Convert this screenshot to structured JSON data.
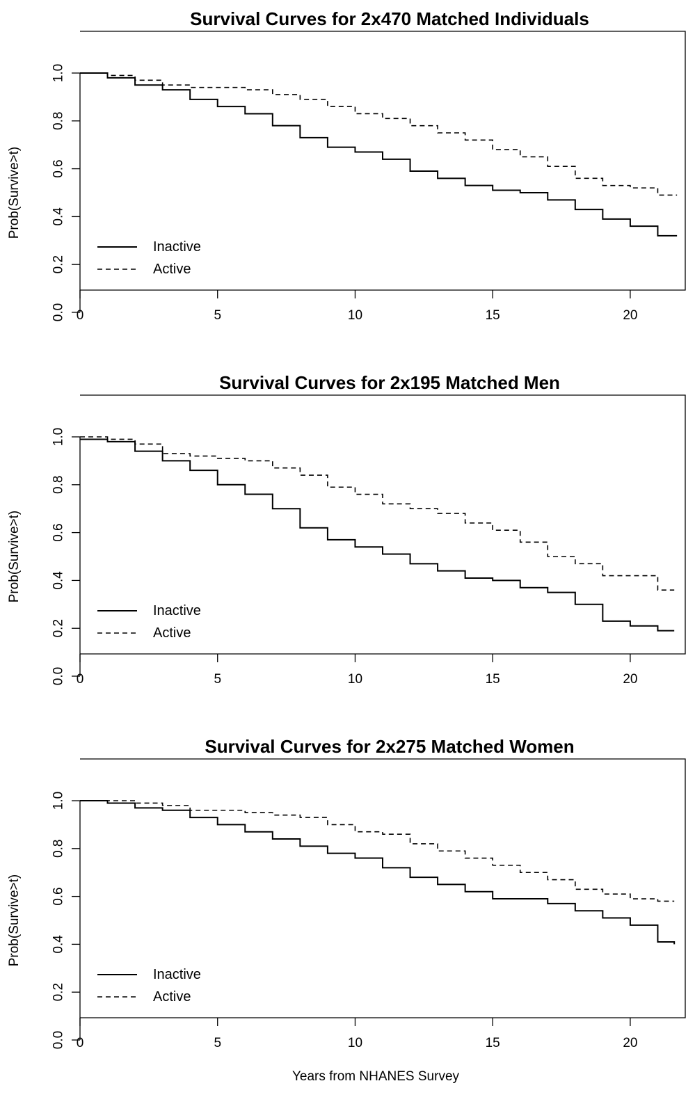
{
  "chart_data": [
    {
      "type": "line",
      "title": "Survival Curves for 2x470 Matched Individuals",
      "ylabel": "Prob(Survive>t)",
      "xlabel": "",
      "xlim": [
        0,
        22
      ],
      "ylim": [
        0,
        1
      ],
      "x_ticks": [
        0,
        5,
        10,
        15,
        20
      ],
      "y_ticks": [
        "0.0",
        "0.2",
        "0.4",
        "0.6",
        "0.8",
        "1.0"
      ],
      "legend": "bottom-left",
      "series": [
        {
          "name": "Inactive",
          "style": "solid",
          "x": [
            0,
            1,
            2,
            3,
            4,
            5,
            6,
            7,
            8,
            9,
            10,
            11,
            12,
            13,
            14,
            15,
            16,
            17,
            18,
            19,
            20,
            21,
            21.7
          ],
          "y": [
            1.0,
            0.98,
            0.95,
            0.93,
            0.89,
            0.86,
            0.83,
            0.78,
            0.73,
            0.69,
            0.67,
            0.64,
            0.59,
            0.56,
            0.53,
            0.51,
            0.5,
            0.47,
            0.43,
            0.39,
            0.36,
            0.32,
            0.32
          ]
        },
        {
          "name": "Active",
          "style": "dashed",
          "x": [
            0,
            1,
            2,
            3,
            4,
            5,
            6,
            7,
            8,
            9,
            10,
            11,
            12,
            13,
            14,
            15,
            16,
            17,
            18,
            19,
            20,
            21,
            21.7
          ],
          "y": [
            1.0,
            0.99,
            0.97,
            0.95,
            0.94,
            0.94,
            0.93,
            0.91,
            0.89,
            0.86,
            0.83,
            0.81,
            0.78,
            0.75,
            0.72,
            0.68,
            0.65,
            0.61,
            0.56,
            0.53,
            0.52,
            0.49,
            0.49
          ]
        }
      ]
    },
    {
      "type": "line",
      "title": "Survival Curves for 2x195 Matched Men",
      "ylabel": "Prob(Survive>t)",
      "xlabel": "",
      "xlim": [
        0,
        22
      ],
      "ylim": [
        0,
        1
      ],
      "x_ticks": [
        0,
        5,
        10,
        15,
        20
      ],
      "y_ticks": [
        "0.0",
        "0.2",
        "0.4",
        "0.6",
        "0.8",
        "1.0"
      ],
      "legend": "bottom-left",
      "series": [
        {
          "name": "Inactive",
          "style": "solid",
          "x": [
            0,
            1,
            2,
            3,
            4,
            5,
            6,
            7,
            8,
            9,
            10,
            11,
            12,
            13,
            14,
            15,
            16,
            17,
            18,
            19,
            20,
            21,
            21.6
          ],
          "y": [
            0.99,
            0.98,
            0.94,
            0.9,
            0.86,
            0.8,
            0.76,
            0.7,
            0.62,
            0.57,
            0.54,
            0.51,
            0.47,
            0.44,
            0.41,
            0.4,
            0.37,
            0.35,
            0.3,
            0.23,
            0.21,
            0.19,
            0.19
          ]
        },
        {
          "name": "Active",
          "style": "dashed",
          "x": [
            0,
            1,
            2,
            3,
            4,
            5,
            6,
            7,
            8,
            9,
            10,
            11,
            12,
            13,
            14,
            15,
            16,
            17,
            18,
            19,
            20,
            21,
            21.6
          ],
          "y": [
            1.0,
            0.99,
            0.97,
            0.93,
            0.92,
            0.91,
            0.9,
            0.87,
            0.84,
            0.79,
            0.76,
            0.72,
            0.7,
            0.68,
            0.64,
            0.61,
            0.56,
            0.5,
            0.47,
            0.42,
            0.42,
            0.36,
            0.36
          ]
        }
      ]
    },
    {
      "type": "line",
      "title": "Survival Curves for 2x275 Matched Women",
      "ylabel": "Prob(Survive>t)",
      "xlabel": "Years from NHANES Survey",
      "xlim": [
        0,
        22
      ],
      "ylim": [
        0,
        1
      ],
      "x_ticks": [
        0,
        5,
        10,
        15,
        20
      ],
      "y_ticks": [
        "0.0",
        "0.2",
        "0.4",
        "0.6",
        "0.8",
        "1.0"
      ],
      "legend": "bottom-left",
      "series": [
        {
          "name": "Inactive",
          "style": "solid",
          "x": [
            0,
            1,
            2,
            3,
            4,
            5,
            6,
            7,
            8,
            9,
            10,
            11,
            12,
            13,
            14,
            15,
            16,
            17,
            18,
            19,
            20,
            21,
            21.6
          ],
          "y": [
            1.0,
            0.99,
            0.97,
            0.96,
            0.93,
            0.9,
            0.87,
            0.84,
            0.81,
            0.78,
            0.76,
            0.72,
            0.68,
            0.65,
            0.62,
            0.59,
            0.59,
            0.57,
            0.54,
            0.51,
            0.48,
            0.41,
            0.4
          ]
        },
        {
          "name": "Active",
          "style": "dashed",
          "x": [
            0,
            1,
            2,
            3,
            4,
            5,
            6,
            7,
            8,
            9,
            10,
            11,
            12,
            13,
            14,
            15,
            16,
            17,
            18,
            19,
            20,
            21,
            21.6
          ],
          "y": [
            1.0,
            1.0,
            0.99,
            0.98,
            0.96,
            0.96,
            0.95,
            0.94,
            0.93,
            0.9,
            0.87,
            0.86,
            0.82,
            0.79,
            0.76,
            0.73,
            0.7,
            0.67,
            0.63,
            0.61,
            0.59,
            0.58,
            0.58
          ]
        }
      ]
    }
  ]
}
